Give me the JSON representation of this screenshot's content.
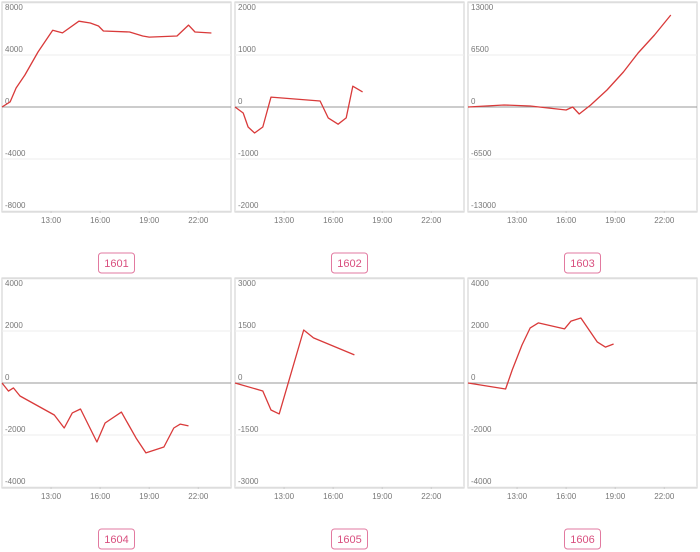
{
  "chart_data": [
    {
      "type": "line",
      "title": "1601",
      "color": "#d93a3a",
      "grid": true,
      "x": [
        10,
        10.5,
        10.86,
        11.4,
        12.2,
        13.1,
        13.7,
        14.7,
        15.4,
        15.9,
        16.2,
        17.8,
        18.6,
        19,
        20.7,
        21.4,
        21.8,
        22.8
      ],
      "values": [
        0,
        400,
        1460,
        2460,
        4230,
        5900,
        5700,
        6600,
        6460,
        6230,
        5850,
        5770,
        5460,
        5380,
        5460,
        6300,
        5770,
        5690
      ],
      "xlim": [
        10,
        24
      ],
      "xticks": [
        {
          "value": 13,
          "label": "13:00"
        },
        {
          "value": 16,
          "label": "16:00"
        },
        {
          "value": 19,
          "label": "19:00"
        },
        {
          "value": 22,
          "label": "22:00"
        }
      ],
      "ylim": [
        -8000,
        8000
      ],
      "yticks": [
        8000,
        4000,
        0,
        -4000,
        -8000
      ]
    },
    {
      "type": "line",
      "title": "1602",
      "color": "#d93a3a",
      "grid": true,
      "x": [
        10,
        10.5,
        10.8,
        11.2,
        11.7,
        12.2,
        15.2,
        15.7,
        16.3,
        16.8,
        17.2,
        17.8
      ],
      "values": [
        0,
        -115,
        -385,
        -500,
        -385,
        190,
        115,
        -210,
        -330,
        -210,
        400,
        290
      ],
      "xlim": [
        10,
        24
      ],
      "xticks": [
        {
          "value": 13,
          "label": "13:00"
        },
        {
          "value": 16,
          "label": "16:00"
        },
        {
          "value": 19,
          "label": "19:00"
        },
        {
          "value": 22,
          "label": "22:00"
        }
      ],
      "ylim": [
        -2000,
        2000
      ],
      "yticks": [
        2000,
        1000,
        0,
        -1000,
        -2000
      ]
    },
    {
      "type": "line",
      "title": "1603",
      "color": "#d93a3a",
      "grid": true,
      "x": [
        10,
        12.2,
        13.8,
        16,
        16.4,
        16.8,
        17.5,
        18.5,
        19.5,
        20.4,
        21.4,
        22.4
      ],
      "values": [
        0,
        250,
        125,
        -375,
        0,
        -875,
        250,
        2125,
        4375,
        6750,
        9000,
        11500
      ],
      "xlim": [
        10,
        24
      ],
      "xticks": [
        {
          "value": 13,
          "label": "13:00"
        },
        {
          "value": 16,
          "label": "16:00"
        },
        {
          "value": 19,
          "label": "19:00"
        },
        {
          "value": 22,
          "label": "22:00"
        }
      ],
      "ylim": [
        -13000,
        13000
      ],
      "yticks": [
        13000,
        6500,
        0,
        -6500,
        -13000
      ]
    },
    {
      "type": "line",
      "title": "1604",
      "color": "#d93a3a",
      "grid": true,
      "x": [
        10,
        10.4,
        10.7,
        11.1,
        13.2,
        13.8,
        14.3,
        14.8,
        15.8,
        16.3,
        17.3,
        18.2,
        18.8,
        19.9,
        20.5,
        20.9,
        21.4
      ],
      "values": [
        0,
        -310,
        -190,
        -500,
        -1230,
        -1730,
        -1150,
        -1000,
        -2270,
        -1540,
        -1120,
        -2120,
        -2690,
        -2460,
        -1730,
        -1580,
        -1650
      ],
      "xlim": [
        10,
        24
      ],
      "xticks": [
        {
          "value": 13,
          "label": "13:00"
        },
        {
          "value": 16,
          "label": "16:00"
        },
        {
          "value": 19,
          "label": "19:00"
        },
        {
          "value": 22,
          "label": "22:00"
        }
      ],
      "ylim": [
        -4000,
        4000
      ],
      "yticks": [
        4000,
        2000,
        0,
        -2000,
        -4000
      ]
    },
    {
      "type": "line",
      "title": "1605",
      "color": "#d93a3a",
      "grid": true,
      "x": [
        10,
        11.7,
        12.2,
        12.7,
        14.2,
        14.8,
        17.3
      ],
      "values": [
        0,
        -230,
        -780,
        -890,
        1530,
        1300,
        810
      ],
      "xlim": [
        10,
        24
      ],
      "xticks": [
        {
          "value": 13,
          "label": "13:00"
        },
        {
          "value": 16,
          "label": "16:00"
        },
        {
          "value": 19,
          "label": "19:00"
        },
        {
          "value": 22,
          "label": "22:00"
        }
      ],
      "ylim": [
        -3000,
        3000
      ],
      "yticks": [
        3000,
        1500,
        0,
        -1500,
        -3000
      ]
    },
    {
      "type": "line",
      "title": "1606",
      "color": "#d93a3a",
      "grid": true,
      "x": [
        10,
        12.3,
        12.7,
        13.3,
        13.8,
        14.3,
        15.9,
        16.3,
        16.9,
        17.9,
        18.4,
        18.9
      ],
      "values": [
        0,
        -230,
        500,
        1460,
        2120,
        2310,
        2080,
        2380,
        2500,
        1580,
        1380,
        1500
      ],
      "xlim": [
        10,
        24
      ],
      "xticks": [
        {
          "value": 13,
          "label": "13:00"
        },
        {
          "value": 16,
          "label": "16:00"
        },
        {
          "value": 19,
          "label": "19:00"
        },
        {
          "value": 22,
          "label": "22:00"
        }
      ],
      "ylim": [
        -4000,
        4000
      ],
      "yticks": [
        4000,
        2000,
        0,
        -2000,
        -4000
      ]
    }
  ]
}
